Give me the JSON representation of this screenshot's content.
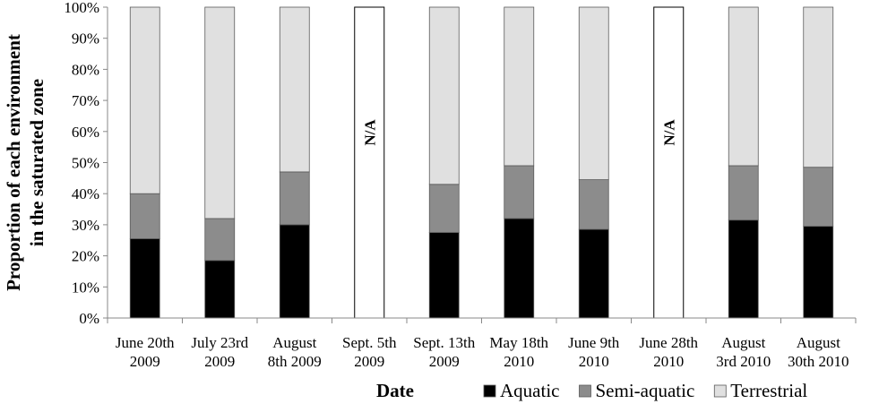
{
  "chart_data": {
    "type": "bar",
    "stacked": true,
    "xlabel": "Date",
    "ylabel": [
      "Proportion of each environment",
      "in the saturated zone"
    ],
    "ylim": [
      0,
      100
    ],
    "y_ticks": [
      "0%",
      "10%",
      "20%",
      "30%",
      "40%",
      "50%",
      "60%",
      "70%",
      "80%",
      "90%",
      "100%"
    ],
    "categories": [
      [
        "June 20th",
        "2009"
      ],
      [
        "July 23rd",
        "2009"
      ],
      [
        "August",
        "8th 2009"
      ],
      [
        "Sept. 5th",
        "2009"
      ],
      [
        "Sept. 13th",
        "2009"
      ],
      [
        "May 18th",
        "2010"
      ],
      [
        "June 9th",
        "2010"
      ],
      [
        "June 28th",
        "2010"
      ],
      [
        "August",
        "3rd 2010"
      ],
      [
        "August",
        "30th 2010"
      ]
    ],
    "na_label": "N/A",
    "na_categories": [
      3,
      7
    ],
    "series": [
      {
        "name": "Aquatic",
        "color": "#000000",
        "values": [
          25.5,
          18.5,
          30,
          null,
          27.5,
          32,
          28.5,
          null,
          31.5,
          29.5
        ]
      },
      {
        "name": "Semi-aquatic",
        "color": "#8c8c8c",
        "values": [
          14.5,
          13.5,
          17,
          null,
          15.5,
          17,
          16,
          null,
          17.5,
          19
        ]
      },
      {
        "name": "Terrestrial",
        "color": "#e0e0e0",
        "values": [
          60,
          68,
          53,
          null,
          57,
          51,
          55.5,
          null,
          51,
          51.5
        ]
      }
    ],
    "legend_position": "bottom-right",
    "grid": false
  }
}
